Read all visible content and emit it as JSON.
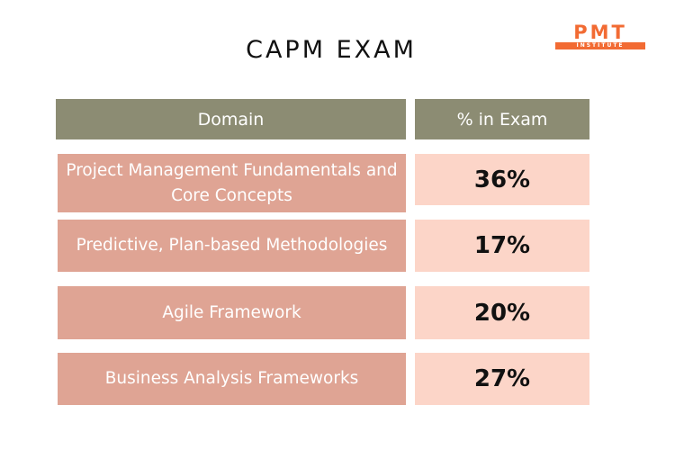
{
  "title": "CAPM EXAM",
  "logo": {
    "main": "PMT",
    "sub": "INSTITUTE"
  },
  "table": {
    "headers": [
      "Domain",
      "% in Exam"
    ],
    "rows": [
      {
        "domain": "Project Management Fundamentals and Core Concepts",
        "percent": "36%"
      },
      {
        "domain": "Predictive, Plan-based Methodologies",
        "percent": "17%"
      },
      {
        "domain": "Agile Framework",
        "percent": "20%"
      },
      {
        "domain": "Business Analysis Frameworks",
        "percent": "27%"
      }
    ]
  },
  "colors": {
    "header_bg": "#8c8c73",
    "domain_bg": "#dfa494",
    "percent_bg": "#fcd5c8",
    "logo": "#f26b33"
  }
}
